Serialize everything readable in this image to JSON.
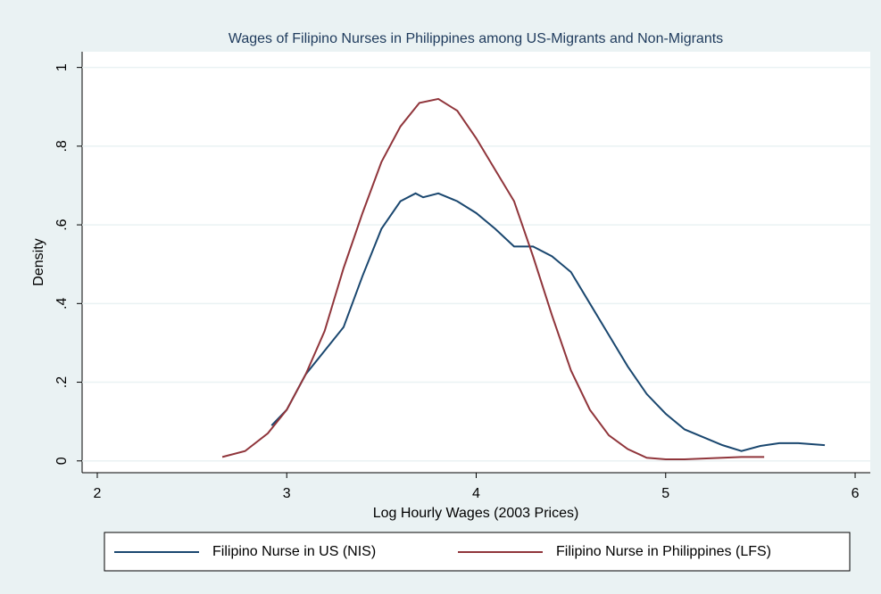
{
  "chart_data": {
    "type": "line",
    "title": "Wages of Filipino Nurses in Philippines among US-Migrants and Non-Migrants",
    "x_label": "Log Hourly Wages (2003 Prices)",
    "y_label": "Density",
    "xlim": [
      1.92,
      6.08
    ],
    "xticks": [
      2,
      3,
      4,
      5,
      6
    ],
    "ylim": [
      -0.03,
      1.04
    ],
    "yticks": [
      0,
      {
        "value": 0.2,
        "label": ".2"
      },
      {
        "value": 0.4,
        "label": ".4"
      },
      {
        "value": 0.6,
        "label": ".6"
      },
      {
        "value": 0.8,
        "label": ".8"
      },
      1
    ],
    "grid": true,
    "legend": "bottom",
    "series": [
      {
        "name": "Filipino Nurse in US (NIS)",
        "color": "#1a476f",
        "x": [
          2.92,
          3.0,
          3.1,
          3.2,
          3.3,
          3.4,
          3.5,
          3.6,
          3.68,
          3.72,
          3.8,
          3.9,
          4.0,
          4.1,
          4.2,
          4.3,
          4.4,
          4.5,
          4.6,
          4.7,
          4.8,
          4.9,
          5.0,
          5.1,
          5.2,
          5.3,
          5.4,
          5.5,
          5.6,
          5.7,
          5.84
        ],
        "values": [
          0.09,
          0.13,
          0.22,
          0.28,
          0.34,
          0.47,
          0.59,
          0.66,
          0.68,
          0.67,
          0.68,
          0.66,
          0.63,
          0.59,
          0.545,
          0.545,
          0.52,
          0.48,
          0.4,
          0.32,
          0.24,
          0.17,
          0.12,
          0.08,
          0.06,
          0.04,
          0.025,
          0.038,
          0.045,
          0.045,
          0.04
        ]
      },
      {
        "name": "Filipino Nurse in Philippines (LFS)",
        "color": "#90353b",
        "x": [
          2.66,
          2.78,
          2.9,
          3.0,
          3.1,
          3.2,
          3.3,
          3.4,
          3.5,
          3.6,
          3.7,
          3.8,
          3.9,
          4.0,
          4.1,
          4.2,
          4.3,
          4.4,
          4.5,
          4.6,
          4.7,
          4.8,
          4.9,
          5.0,
          5.1,
          5.2,
          5.3,
          5.4,
          5.52
        ],
        "values": [
          0.01,
          0.025,
          0.07,
          0.13,
          0.22,
          0.33,
          0.49,
          0.63,
          0.76,
          0.85,
          0.91,
          0.92,
          0.89,
          0.82,
          0.74,
          0.66,
          0.52,
          0.37,
          0.23,
          0.13,
          0.065,
          0.03,
          0.008,
          0.004,
          0.004,
          0.006,
          0.008,
          0.01,
          0.01
        ]
      }
    ]
  }
}
